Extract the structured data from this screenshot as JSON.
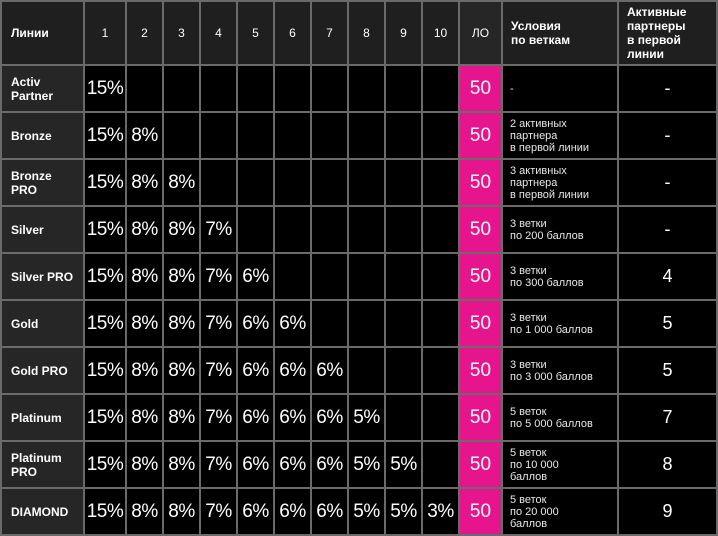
{
  "header": {
    "lines_label": "Линии",
    "levels": [
      "1",
      "2",
      "3",
      "4",
      "5",
      "6",
      "7",
      "8",
      "9",
      "10"
    ],
    "lo_label": "ЛО",
    "conditions_label": "Условия\nпо веткам",
    "active_label": "Активные\nпартнеры\nв первой\nлинии"
  },
  "colors": {
    "accent_lo": "#e6148d",
    "background": "#000000",
    "grid_line": "#6a6a6a"
  },
  "rows": [
    {
      "name": "Activ\nPartner",
      "pcts": [
        "15%",
        "",
        "",
        "",
        "",
        "",
        "",
        "",
        "",
        ""
      ],
      "lo": "50",
      "condition": "-",
      "active": "-"
    },
    {
      "name": "Bronze",
      "pcts": [
        "15%",
        "8%",
        "",
        "",
        "",
        "",
        "",
        "",
        "",
        ""
      ],
      "lo": "50",
      "condition": "2 активных\nпартнера\nв первой линии",
      "active": "-"
    },
    {
      "name": "Bronze\nPRO",
      "pcts": [
        "15%",
        "8%",
        "8%",
        "",
        "",
        "",
        "",
        "",
        "",
        ""
      ],
      "lo": "50",
      "condition": "3 активных\nпартнера\nв первой линии",
      "active": "-"
    },
    {
      "name": "Silver",
      "pcts": [
        "15%",
        "8%",
        "8%",
        "7%",
        "",
        "",
        "",
        "",
        "",
        ""
      ],
      "lo": "50",
      "condition": "3  ветки\nпо 200 баллов",
      "active": "-"
    },
    {
      "name": "Silver PRO",
      "pcts": [
        "15%",
        "8%",
        "8%",
        "7%",
        "6%",
        "",
        "",
        "",
        "",
        ""
      ],
      "lo": "50",
      "condition": "3 ветки\nпо 300 баллов",
      "active": "4"
    },
    {
      "name": "Gold",
      "pcts": [
        "15%",
        "8%",
        "8%",
        "7%",
        "6%",
        "6%",
        "",
        "",
        "",
        ""
      ],
      "lo": "50",
      "condition": "3 ветки\nпо 1 000 баллов",
      "active": "5"
    },
    {
      "name": "Gold PRO",
      "pcts": [
        "15%",
        "8%",
        "8%",
        "7%",
        "6%",
        "6%",
        "6%",
        "",
        "",
        ""
      ],
      "lo": "50",
      "condition": "3 ветки\nпо 3 000 баллов",
      "active": "5"
    },
    {
      "name": "Platinum",
      "pcts": [
        "15%",
        "8%",
        "8%",
        "7%",
        "6%",
        "6%",
        "6%",
        "5%",
        "",
        ""
      ],
      "lo": "50",
      "condition": "5 веток\nпо 5 000 баллов",
      "active": "7"
    },
    {
      "name": "Platinum\nPRO",
      "pcts": [
        "15%",
        "8%",
        "8%",
        "7%",
        "6%",
        "6%",
        "6%",
        "5%",
        "5%",
        ""
      ],
      "lo": "50",
      "condition": "5 веток\nпо 10 000\nбаллов",
      "active": "8"
    },
    {
      "name": "DIAMOND",
      "pcts": [
        "15%",
        "8%",
        "8%",
        "7%",
        "6%",
        "6%",
        "6%",
        "5%",
        "5%",
        "3%"
      ],
      "lo": "50",
      "condition": "5 веток\nпо 20 000\nбаллов",
      "active": "9"
    }
  ]
}
